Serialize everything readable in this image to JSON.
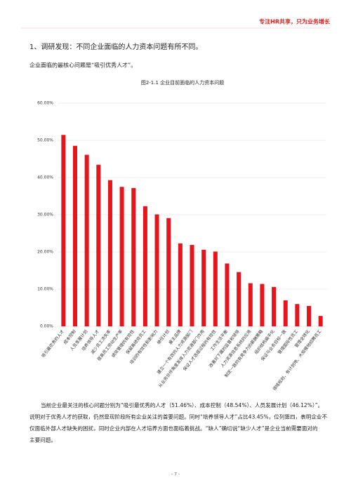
{
  "header": {
    "slogan": "专注HR共享，只为业务增长"
  },
  "heading": "1、调研发现：不同企业面临的人力资本问题有所不同。",
  "intro": "企业面临的最核心问题是“吸引优秀人才”。",
  "chart_data": {
    "type": "bar",
    "title": "图2-1.1 企业目前面临的人力资本问题",
    "categories": [
      "吸引最优秀的人才",
      "成本控制",
      "人员发展计划",
      "培养领导人才",
      "减少员工流失率",
      "提高员工劳动生产率",
      "绩效管理的有效性",
      "保留高绩效员工",
      "培训的有效性和影响力",
      "继任计划",
      "雇主品牌",
      "建立一个有效的人力资源部门",
      "从业务伙伴角度发挥人力资源部门作用",
      "保证人才选拔过程的有效性",
      "工作生活平衡",
      "改善对下属的监督和领导",
      "人力资源信息系统的应用",
      "制定一致的有竞争力的薪酬策略",
      "组织结构扁平化",
      "保证与业务目标一致",
      "管理国际性员工",
      "管理全球化",
      "领域规划，有计划地、大规模地招聘员工"
    ],
    "values": [
      51.46,
      48.54,
      46.12,
      43.45,
      39.3,
      37.5,
      37.2,
      32.3,
      30.1,
      29.1,
      22.3,
      21.9,
      20.6,
      20.1,
      16.9,
      14.6,
      11.6,
      11.4,
      10.6,
      7.0,
      6.0,
      5.5,
      2.8
    ],
    "color": "#e8141b",
    "ylim": [
      0,
      60
    ],
    "yticks": [
      {
        "value": 0,
        "label": "0.00%"
      },
      {
        "value": 10,
        "label": "10.00%"
      },
      {
        "value": 20,
        "label": "20.00%"
      },
      {
        "value": 30,
        "label": "30.00%"
      },
      {
        "value": 40,
        "label": "40.00%"
      },
      {
        "value": 50,
        "label": "50.00%"
      },
      {
        "value": 60,
        "label": "60.00%"
      }
    ],
    "grid": true
  },
  "body": {
    "lines": [
      "当前企业最关注的核心问题分别为“吸引最优秀的人才（51.46%）、成本控制（48.54%）、人员发展计划（46.12%）”。",
      "说明对于优秀人才的获取，仍然是现阶段所有企业关注的首要问题。同时“培养领导人才”占比43.45%，位列第四，表明企业不",
      "仅面临外部人才缺失的困扰，同时企业内部在人才培养方面也面临着挑战。“缺人”确切说“缺少人才”是企业当前需要面对的",
      "主要问题。"
    ]
  },
  "footer": {
    "page": "- 7 -"
  }
}
